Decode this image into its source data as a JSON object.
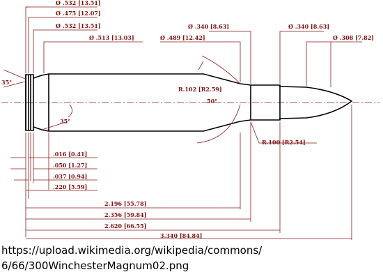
{
  "diagram": {
    "labels": {
      "rim_dia": "Ø .532 [13.51]",
      "extractor_groove_dia": "Ø .475 [12.07]",
      "belt_dia": "Ø .532 [13.51]",
      "belt_front_dia": "Ø .513 [13.03]",
      "shoulder_dia": "Ø .489 [12.42]",
      "neck_dia_a": "Ø .340 [8.63]",
      "neck_dia_b": "Ø .340 [8.63]",
      "bullet_dia": "Ø .308 [7.82]",
      "shoulder_radius": "R.102 [R2.59]",
      "neck_radius": "R.100 [R2.54]",
      "shoulder_angle": "50°",
      "rim_bevel_angle": "35°",
      "groove_angle": "35°",
      "rim_thickness": ".016 [0.41]",
      "groove_start": ".050 [1.27]",
      "groove_width": ".037 [0.94]",
      "belt_length": ".220 [5.59]",
      "shoulder_length": "2.196 [55.78]",
      "neck_start_length": "2.356 [59.84]",
      "case_length": "2.620 [66.55]",
      "overall_length": "3.340 [84.84]"
    },
    "colors": {
      "dimension": "#8b1a1a",
      "outline": "#000000",
      "background": "#ffffff"
    }
  },
  "caption": {
    "line1": "https://upload.wikimedia.org/wikipedia/commons/",
    "line2": "6/66/300WinchesterMagnum02.png"
  }
}
